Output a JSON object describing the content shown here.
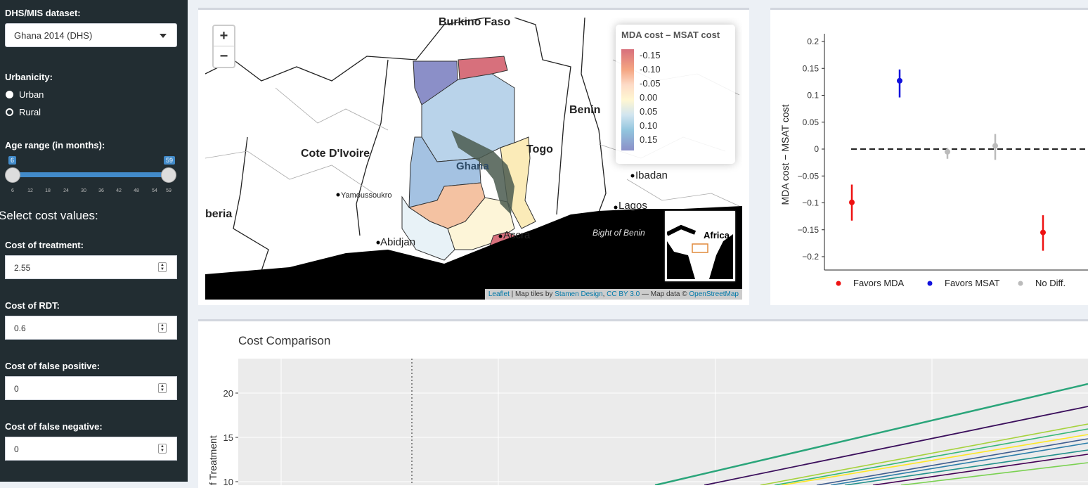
{
  "sidebar": {
    "dataset_label": "DHS/MIS dataset:",
    "dataset_value": "Ghana 2014 (DHS)",
    "urbanicity_label": "Urbanicity:",
    "urban_option": "Urban",
    "rural_option": "Rural",
    "age_label": "Age range (in months):",
    "age_min": "6",
    "age_max": "59",
    "age_ticks": [
      "6",
      "12",
      "18",
      "24",
      "30",
      "36",
      "42",
      "48",
      "54",
      "59"
    ],
    "select_cost_heading": "Select cost values:",
    "treatment_label": "Cost of treatment:",
    "treatment_value": "2.55",
    "rdt_label": "Cost of RDT:",
    "rdt_value": "0.6",
    "fp_label": "Cost of false positive:",
    "fp_value": "0",
    "fn_label": "Cost of false negative:",
    "fn_value": "0"
  },
  "map": {
    "zoom_in": "+",
    "zoom_out": "−",
    "labels": {
      "burkina": "Burkino Faso",
      "benin": "Benin",
      "togo": "Togo",
      "ghana": "Ghana",
      "cote": "Cote D'Ivoire",
      "yamoussoukro": "Yamoussoukro",
      "abidjan": "Abidjan",
      "accra": "Accra",
      "ibadan": "Ibadan",
      "lagos": "Lagos",
      "bight": "Bight of Benin",
      "liberia": "beria",
      "africa": "Africa"
    },
    "legend_title": "MDA cost – MSAT cost",
    "legend_values": [
      "-0.15",
      "-0.10",
      "-0.05",
      "0.00",
      "0.05",
      "0.10",
      "0.15"
    ],
    "attribution": {
      "leaflet": "Leaflet",
      "sep1": " | Map tiles by ",
      "stamen": "Stamen Design",
      "sep2": ", ",
      "cc": "CC BY 3.0",
      "sep3": " — Map data © ",
      "osm": "OpenStreetMap"
    }
  },
  "plot": {
    "chart_data": {
      "type": "scatter",
      "ylabel": "MDA cost − MSAT cost",
      "ylim": [
        -0.22,
        0.22
      ],
      "yticks": [
        "0.2",
        "0.15",
        "0.1",
        "0.05",
        "0",
        "−0.05",
        "−0.1",
        "−0.15",
        "−0.2"
      ],
      "series": [
        {
          "name": "Favors MDA",
          "color": "#ee1111",
          "points": [
            {
              "x": 1,
              "y": -0.099,
              "lo": -0.133,
              "hi": -0.066
            },
            {
              "x": 5,
              "y": -0.155,
              "lo": -0.189,
              "hi": -0.123
            }
          ]
        },
        {
          "name": "Favors MSAT",
          "color": "#1111dd",
          "points": [
            {
              "x": 2,
              "y": 0.127,
              "lo": 0.096,
              "hi": 0.148
            }
          ]
        },
        {
          "name": "No Diff.",
          "color": "#bbbbbb",
          "points": [
            {
              "x": 3,
              "y": -0.005,
              "lo": -0.018,
              "hi": 0.002
            },
            {
              "x": 4,
              "y": 0.006,
              "lo": -0.02,
              "hi": 0.028
            }
          ]
        }
      ]
    }
  },
  "chart": {
    "title": "Cost Comparison",
    "chart_data": {
      "type": "line",
      "ylabel": "f Treatment",
      "yticks": [
        "20",
        "15",
        "10"
      ]
    }
  }
}
